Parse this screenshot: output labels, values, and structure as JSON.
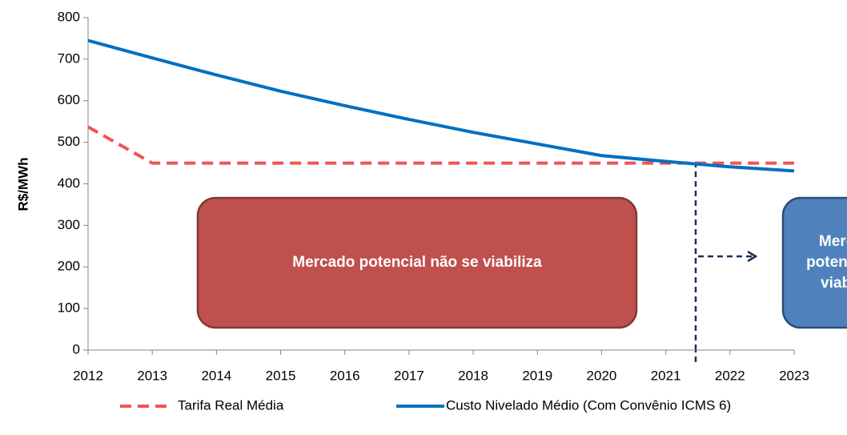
{
  "chart_data": {
    "type": "line",
    "y_label": "R$/MWh",
    "x": [
      2012,
      2013,
      2014,
      2015,
      2016,
      2017,
      2018,
      2019,
      2020,
      2021,
      2022,
      2023
    ],
    "series": [
      {
        "name": "Tarifa Real Média",
        "color": "#f05555",
        "dashed": true,
        "values": [
          537,
          450,
          450,
          450,
          450,
          450,
          450,
          450,
          450,
          450,
          450,
          450
        ]
      },
      {
        "name": "Custo Nivelado Médio (Com Convênio ICMS 6)",
        "color": "#0070c0",
        "dashed": false,
        "values": [
          745,
          703,
          662,
          623,
          588,
          555,
          524,
          496,
          468,
          454,
          441,
          431
        ]
      }
    ],
    "xlim": [
      2012,
      2023
    ],
    "xticks": [
      2012,
      2013,
      2014,
      2015,
      2016,
      2017,
      2018,
      2019,
      2020,
      2021,
      2022,
      2023
    ],
    "ylim": [
      0,
      800
    ],
    "yticks": [
      0,
      100,
      200,
      300,
      400,
      500,
      600,
      700,
      800
    ],
    "grid": false,
    "annotations": [
      {
        "lines": [
          "Mercado potencial não se viabiliza"
        ],
        "color": "#c0504d",
        "border": "#7f3a35"
      },
      {
        "lines": [
          "Mercado",
          "potencial se",
          "viabiliza"
        ],
        "color": "#4f81bd",
        "border": "#2c4d75"
      }
    ]
  }
}
